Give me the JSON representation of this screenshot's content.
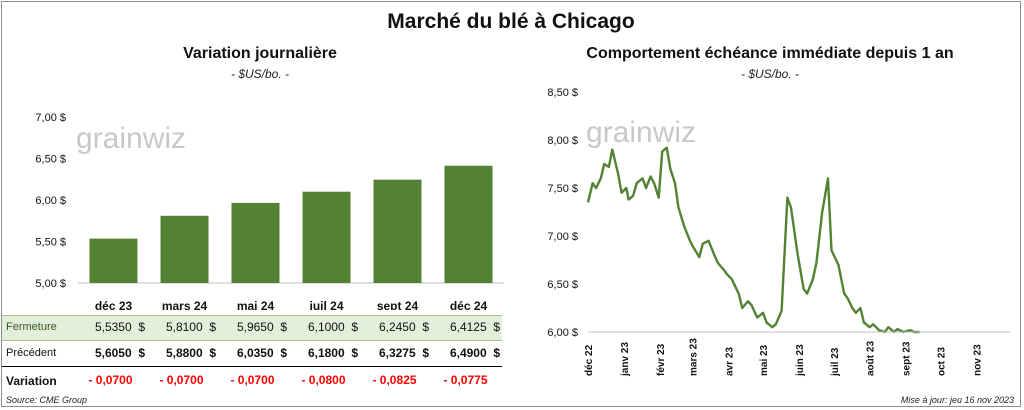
{
  "title": "Marché du blé à Chicago",
  "left_panel": {
    "title": "Variation  journalière",
    "subtitle": "- $US/bo. -",
    "watermark": "grainwiz"
  },
  "right_panel": {
    "title": "Comportement  échéance immédiate depuis 1 an",
    "subtitle": "- $US/bo. -",
    "watermark": "grainwiz"
  },
  "table": {
    "rows": [
      {
        "label": "Fermeture",
        "values": [
          "5,5350  $",
          "5,8100  $",
          "5,9650  $",
          "6,1000  $",
          "6,2450  $",
          "6,4125  $"
        ]
      },
      {
        "label": "Précédent",
        "values": [
          "5,6050  $",
          "5,8800  $",
          "6,0350  $",
          "6,1800  $",
          "6,3275  $",
          "6,4900  $"
        ]
      },
      {
        "label": "Variation",
        "values": [
          "- 0,0700",
          "- 0,0700",
          "- 0,0700",
          "- 0,0800",
          "- 0,0825",
          "- 0,0775"
        ]
      }
    ]
  },
  "footer": {
    "source": "Source: CME Group",
    "updated": "Mise à jour: jeu 16 nov 2023"
  },
  "colors": {
    "bar": "#548235",
    "line": "#548235",
    "band": "#e2efda",
    "negative": "#ff0000"
  },
  "chart_data": [
    {
      "type": "bar",
      "categories": [
        "déc 23",
        "mars 24",
        "mai 24",
        "juil 24",
        "sept 24",
        "déc 24"
      ],
      "values": [
        5.535,
        5.81,
        5.965,
        6.1,
        6.245,
        6.4125
      ],
      "ylim": [
        5.0,
        7.0
      ],
      "yticks": [
        "5,00 $",
        "5,50 $",
        "6,00 $",
        "6,50 $",
        "7,00 $"
      ],
      "grid": false
    },
    {
      "type": "line",
      "ylim": [
        6.0,
        8.5
      ],
      "yticks": [
        "6,00 $",
        "6,50 $",
        "7,00 $",
        "7,50 $",
        "8,00 $",
        "8,50 $"
      ],
      "xticks": [
        "déc 22",
        "janv 23",
        "févr 23",
        "mars 23",
        "avr 23",
        "mai 23",
        "juin 23",
        "juil 23",
        "août 23",
        "sept 23",
        "oct 23",
        "nov 23"
      ],
      "grid": false,
      "x": [
        "2022-12-01",
        "2022-12-05",
        "2022-12-08",
        "2022-12-12",
        "2022-12-15",
        "2022-12-19",
        "2022-12-22",
        "2022-12-27",
        "2022-12-30",
        "2023-01-03",
        "2023-01-05",
        "2023-01-09",
        "2023-01-12",
        "2023-01-17",
        "2023-01-20",
        "2023-01-24",
        "2023-01-27",
        "2023-01-31",
        "2023-02-03",
        "2023-02-07",
        "2023-02-10",
        "2023-02-14",
        "2023-02-17",
        "2023-02-22",
        "2023-02-27",
        "2023-03-02",
        "2023-03-07",
        "2023-03-10",
        "2023-03-15",
        "2023-03-20",
        "2023-03-23",
        "2023-03-28",
        "2023-03-31",
        "2023-04-04",
        "2023-04-10",
        "2023-04-13",
        "2023-04-18",
        "2023-04-21",
        "2023-04-26",
        "2023-05-01",
        "2023-05-04",
        "2023-05-09",
        "2023-05-12",
        "2023-05-17",
        "2023-05-22",
        "2023-05-25",
        "2023-05-31",
        "2023-06-05",
        "2023-06-08",
        "2023-06-13",
        "2023-06-16",
        "2023-06-21",
        "2023-06-26",
        "2023-06-29",
        "2023-07-05",
        "2023-07-10",
        "2023-07-13",
        "2023-07-17",
        "2023-07-20",
        "2023-07-24",
        "2023-07-27",
        "2023-08-01",
        "2023-08-04",
        "2023-08-09",
        "2023-08-14",
        "2023-08-17",
        "2023-08-22",
        "2023-08-25",
        "2023-08-30",
        "2023-09-05",
        "2023-09-08",
        "2023-09-13"
      ],
      "y": [
        7.35,
        7.55,
        7.5,
        7.6,
        7.75,
        7.72,
        7.9,
        7.65,
        7.45,
        7.5,
        7.38,
        7.42,
        7.55,
        7.6,
        7.5,
        7.62,
        7.55,
        7.4,
        7.88,
        7.92,
        7.7,
        7.55,
        7.3,
        7.1,
        6.95,
        6.88,
        6.78,
        6.92,
        6.95,
        6.8,
        6.72,
        6.65,
        6.6,
        6.55,
        6.4,
        6.25,
        6.32,
        6.28,
        6.15,
        6.2,
        6.1,
        6.05,
        6.08,
        6.22,
        7.4,
        7.3,
        6.8,
        6.45,
        6.4,
        6.55,
        6.72,
        7.25,
        7.6,
        6.85,
        6.7,
        6.4,
        6.35,
        6.25,
        6.2,
        6.25,
        6.1,
        6.05,
        6.08,
        6.02,
        6.0,
        6.05,
        6.0,
        6.03,
        6.0,
        6.02,
        5.98,
        6.0
      ]
    }
  ]
}
